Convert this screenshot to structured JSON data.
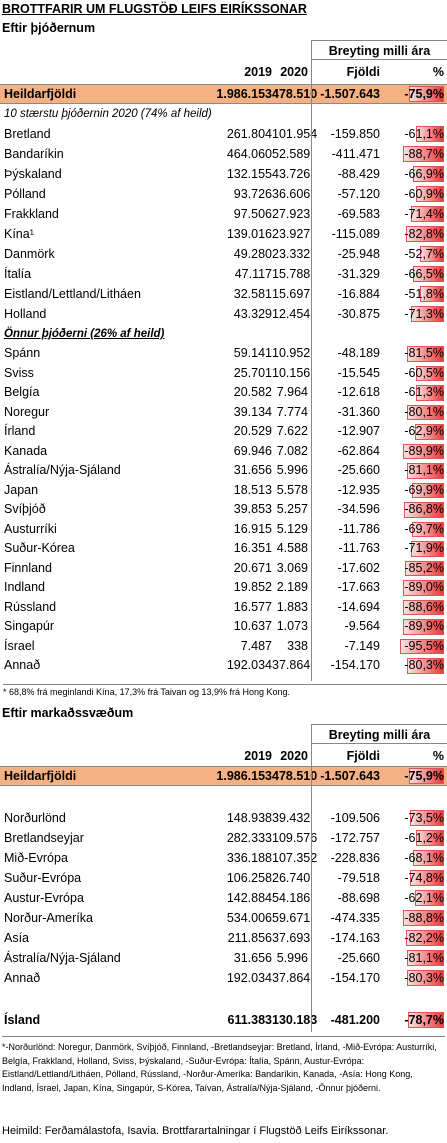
{
  "title": "BROTTFARIR UM FLUGSTÖÐ LEIFS EIRÍKSSONAR",
  "section1": {
    "title": "Eftir þjóðernum",
    "change_header": "Breyting milli ára",
    "columns": [
      "2019",
      "2020",
      "Fjöldi",
      "%"
    ],
    "total": [
      "Heildarfjöldi",
      "1.986.153",
      "478.510",
      "-1.507.643",
      "-75,9%"
    ],
    "group1": {
      "title": "10 stærstu þjóðernin 2020 (74% af heild)",
      "rows": [
        [
          "Bretland",
          "261.804",
          "101.954",
          "-159.850",
          "-61,1%"
        ],
        [
          "Bandaríkin",
          "464.060",
          "52.589",
          "-411.471",
          "-88,7%"
        ],
        [
          "Þýskaland",
          "132.155",
          "43.726",
          "-88.429",
          "-66,9%"
        ],
        [
          "Pólland",
          "93.726",
          "36.606",
          "-57.120",
          "-60,9%"
        ],
        [
          "Frakkland",
          "97.506",
          "27.923",
          "-69.583",
          "-71,4%"
        ],
        [
          "Kína¹",
          "139.016",
          "23.927",
          "-115.089",
          "-82,8%"
        ],
        [
          "Danmörk",
          "49.280",
          "23.332",
          "-25.948",
          "-52,7%"
        ],
        [
          "Ítalía",
          "47.117",
          "15.788",
          "-31.329",
          "-66,5%"
        ],
        [
          "Eistland/Lettland/Litháen",
          "32.581",
          "15.697",
          "-16.884",
          "-51,8%"
        ],
        [
          "Holland",
          "43.329",
          "12.454",
          "-30.875",
          "-71,3%"
        ]
      ]
    },
    "group2": {
      "title": "Önnur þjóðerni (26% af heild)",
      "rows": [
        [
          "Spánn",
          "59.141",
          "10.952",
          "-48.189",
          "-81,5%"
        ],
        [
          "Sviss",
          "25.701",
          "10.156",
          "-15.545",
          "-60,5%"
        ],
        [
          "Belgía",
          "20.582",
          "7.964",
          "-12.618",
          "-61,3%"
        ],
        [
          "Noregur",
          "39.134",
          "7.774",
          "-31.360",
          "-80,1%"
        ],
        [
          "Írland",
          "20.529",
          "7.622",
          "-12.907",
          "-62,9%"
        ],
        [
          "Kanada",
          "69.946",
          "7.082",
          "-62.864",
          "-89,9%"
        ],
        [
          "Ástralía/Nýja-Sjáland",
          "31.656",
          "5.996",
          "-25.660",
          "-81,1%"
        ],
        [
          "Japan",
          "18.513",
          "5.578",
          "-12.935",
          "-69,9%"
        ],
        [
          "Svíþjóð",
          "39.853",
          "5.257",
          "-34.596",
          "-86,8%"
        ],
        [
          "Austurríki",
          "16.915",
          "5.129",
          "-11.786",
          "-69,7%"
        ],
        [
          "Suður-Kórea",
          "16.351",
          "4.588",
          "-11.763",
          "-71,9%"
        ],
        [
          "Finnland",
          "20.671",
          "3.069",
          "-17.602",
          "-85,2%"
        ],
        [
          "Indland",
          "19.852",
          "2.189",
          "-17.663",
          "-89,0%"
        ],
        [
          "Rússland",
          "16.577",
          "1.883",
          "-14.694",
          "-88,6%"
        ],
        [
          "Singapúr",
          "10.637",
          "1.073",
          "-9.564",
          "-89,9%"
        ],
        [
          "Ísrael",
          "7.487",
          "338",
          "-7.149",
          "-95,5%"
        ],
        [
          "Annað",
          "192.034",
          "37.864",
          "-154.170",
          "-80,3%"
        ]
      ]
    },
    "footnote": "* 68,8% frá meginlandi Kína, 17,3% frá Taivan og 13,9% frá Hong Kong."
  },
  "section2": {
    "title": "Eftir markaðssvæðum",
    "change_header": "Breyting milli ára",
    "columns": [
      "2019",
      "2020",
      "Fjöldi",
      "%"
    ],
    "total": [
      "Heildarfjöldi",
      "1.986.153",
      "478.510",
      "-1.507.643",
      "-75,9%"
    ],
    "rows": [
      [
        "Norðurlönd",
        "148.938",
        "39.432",
        "-109.506",
        "-73,5%"
      ],
      [
        "Bretlandseyjar",
        "282.333",
        "109.576",
        "-172.757",
        "-61,2%"
      ],
      [
        "Mið-Evrópa",
        "336.188",
        "107.352",
        "-228.836",
        "-68,1%"
      ],
      [
        "Suður-Evrópa",
        "106.258",
        "26.740",
        "-79.518",
        "-74,8%"
      ],
      [
        "Austur-Evrópa",
        "142.884",
        "54.186",
        "-88.698",
        "-62,1%"
      ],
      [
        "Norður-Ameríka",
        "534.006",
        "59.671",
        "-474.335",
        "-88,8%"
      ],
      [
        "Asía",
        "211.856",
        "37.693",
        "-174.163",
        "-82,2%"
      ],
      [
        "Ástralía/Nýja-Sjáland",
        "31.656",
        "5.996",
        "-25.660",
        "-81,1%"
      ],
      [
        "Annað",
        "192.034",
        "37.864",
        "-154.170",
        "-80,3%"
      ]
    ],
    "iceland": [
      "Ísland",
      "611.383",
      "130.183",
      "-481.200",
      "-78,7%"
    ]
  },
  "footnote": "*-Norðurlönd: Noregur, Danmörk, Svíþjóð, Finnland, -Bretlandseyjar: Bretland, Írland, -Mið-Evrópa: Austurríki, Belgía, Frakkland, Holland, Sviss, Þýskaland, -Suður-Evrópa: Ítalía, Spánn, Austur-Evrópa: Eistland/Lettland/Litháen, Pólland, Rússland, -Norður-Ameríka: Bandaríkin, Kanada, -Asía: Hong Kong, Indland, Ísrael, Japan, Kína, Singapúr, S-Kórea, Taívan, Ástralía/Nýja-Sjáland, -Önnur þjóðerni.",
  "source": "Heimild: Ferðamálastofa, Isavia. Brottfarartalningar í Flugstöð Leifs Eiríkssonar."
}
